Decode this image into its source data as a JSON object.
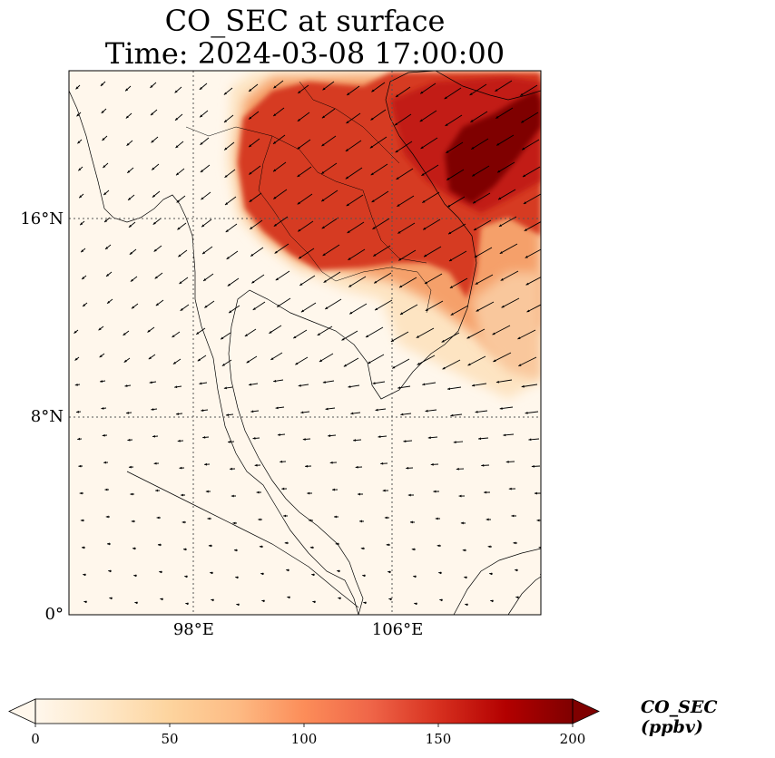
{
  "title": {
    "line1": "CO_SEC at surface",
    "line2": "Time: 2024-03-08 17:00:00"
  },
  "map": {
    "extent": {
      "lon_min": 93,
      "lon_max": 112,
      "lat_min": 0,
      "lat_max": 22
    },
    "lat_ticks": [
      {
        "value": 0,
        "label": "0°"
      },
      {
        "value": 8,
        "label": "8°N"
      },
      {
        "value": 16,
        "label": "16°N"
      }
    ],
    "lon_ticks": [
      {
        "value": 98,
        "label": "98°E"
      },
      {
        "value": 106,
        "label": "106°E"
      }
    ],
    "gridlines": true
  },
  "colorbar": {
    "label": "CO_SEC (ppbv)",
    "min": 0,
    "max": 200,
    "extend": "both",
    "colormap": "OrRd",
    "ticks": [
      {
        "value": 0,
        "label": "0"
      },
      {
        "value": 50,
        "label": "50"
      },
      {
        "value": 100,
        "label": "100"
      },
      {
        "value": 150,
        "label": "150"
      },
      {
        "value": 200,
        "label": "200"
      }
    ]
  }
}
